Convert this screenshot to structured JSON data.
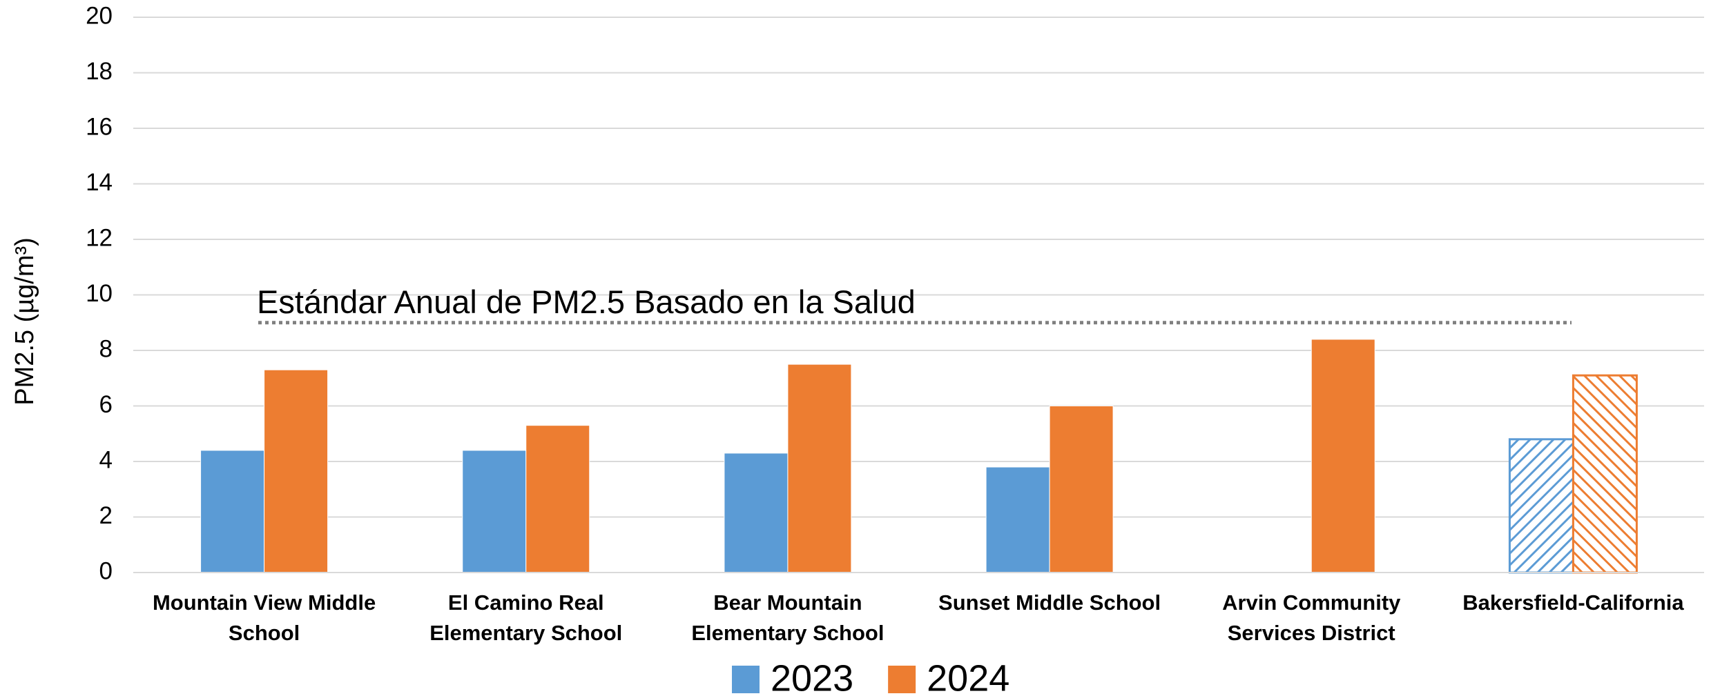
{
  "chart_data": {
    "type": "bar",
    "y_axis_label": "PM2.5 (µg/m³)",
    "categories": [
      "Mountain View Middle School",
      "El Camino Real Elementary School",
      "Bear Mountain Elementary School",
      "Sunset Middle School",
      "Arvin Community Services District",
      "Bakersfield-California"
    ],
    "series": [
      {
        "name": "2023",
        "color": "#5b9bd5",
        "values": [
          4.4,
          4.4,
          4.3,
          3.8,
          null,
          4.8
        ]
      },
      {
        "name": "2024",
        "color": "#ed7d31",
        "values": [
          7.3,
          5.3,
          7.5,
          6.0,
          8.4,
          7.1
        ]
      }
    ],
    "hatched": [
      false,
      false,
      false,
      false,
      false,
      true
    ],
    "reference_line": {
      "label": "Estándar Anual de PM2.5 Basado en la Salud",
      "value": 9.0,
      "color": "#808080"
    },
    "ylim": [
      0,
      20
    ],
    "yticks": [
      0,
      2,
      4,
      6,
      8,
      10,
      12,
      14,
      16,
      18,
      20
    ],
    "grid": true,
    "legend": "bottom"
  }
}
